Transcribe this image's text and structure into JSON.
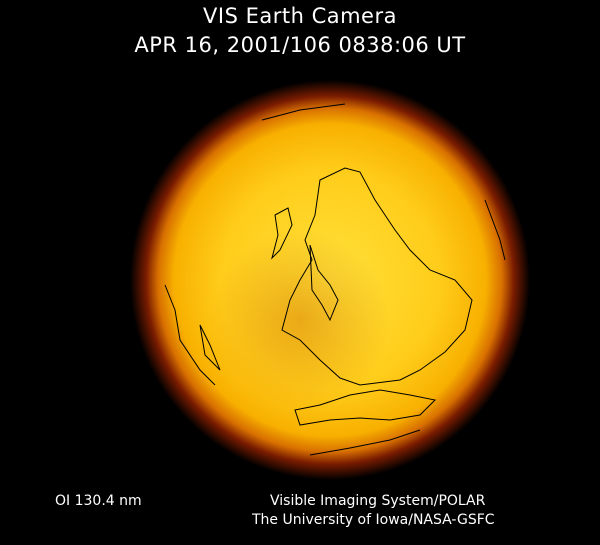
{
  "header": {
    "title": "VIS Earth Camera",
    "timestamp": "APR 16, 2001/106 0838:06 UT"
  },
  "footer": {
    "filter": "OI  130.4 nm",
    "credit_line1": "Visible Imaging System/POLAR",
    "credit_line2": "The University of Iowa/NASA-GSFC"
  },
  "colors": {
    "background": "#000000",
    "disk_core": "#ffe640",
    "disk_mid": "#f5a800",
    "limb_glow": "#8a1a00",
    "coastline": "#000000"
  }
}
